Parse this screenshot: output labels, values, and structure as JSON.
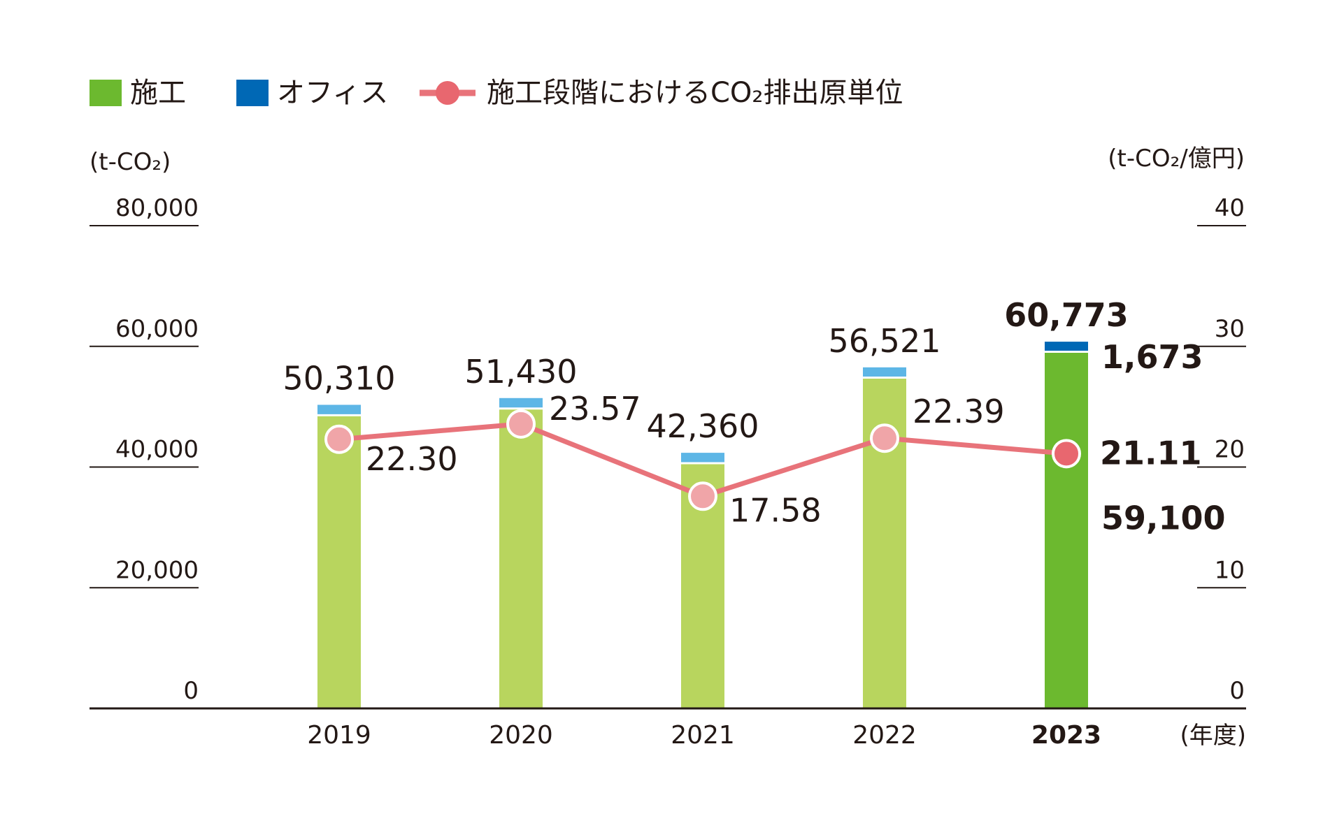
{
  "colors": {
    "construction": "#B8D55E",
    "construction_latest": "#6CB92F",
    "office": "#5DB6E6",
    "office_latest": "#0068B5",
    "intensity_line": "#E8737A",
    "intensity_marker": "#F0A5A8",
    "intensity_marker_latest": "#E8676F",
    "axis": "#231815"
  },
  "legend": {
    "construction": "施工",
    "office": "オフィス",
    "intensity": "施工段階におけるCO₂排出原単位"
  },
  "chart_data": {
    "type": "bar",
    "categories": [
      "2019",
      "2020",
      "2021",
      "2022",
      "2023"
    ],
    "x_unit": "(年度)",
    "y_left": {
      "unit": "(t-CO₂)",
      "range": [
        0,
        80000
      ],
      "ticks": [
        "0",
        "20,000",
        "40,000",
        "60,000",
        "80,000"
      ]
    },
    "y_right": {
      "unit": "(t-CO₂/億円)",
      "range": [
        0,
        40
      ],
      "ticks": [
        "0",
        "10",
        "20",
        "30",
        "40"
      ]
    },
    "series": [
      {
        "name": "施工",
        "type": "bar",
        "stack": "total",
        "axis": "left",
        "values": [
          48580,
          49700,
          40630,
          54820,
          59100
        ],
        "labels": [
          "",
          "",
          "",
          "",
          "59,100"
        ]
      },
      {
        "name": "オフィス",
        "type": "bar",
        "stack": "total",
        "axis": "left",
        "values": [
          1730,
          1730,
          1730,
          1700,
          1673
        ],
        "labels": [
          "",
          "",
          "",
          "",
          "1,673"
        ]
      },
      {
        "name": "施工段階におけるCO₂排出原単位",
        "type": "line",
        "axis": "right",
        "values": [
          22.3,
          23.57,
          17.58,
          22.39,
          21.11
        ],
        "labels": [
          "22.30",
          "23.57",
          "17.58",
          "22.39",
          "21.11"
        ]
      }
    ],
    "totals": [
      50310,
      51430,
      42360,
      56521,
      60773
    ],
    "total_labels": [
      "50,310",
      "51,430",
      "42,360",
      "56,521",
      "60,773"
    ],
    "highlight_index": 4,
    "grid": false,
    "legend_position": "top-left"
  }
}
